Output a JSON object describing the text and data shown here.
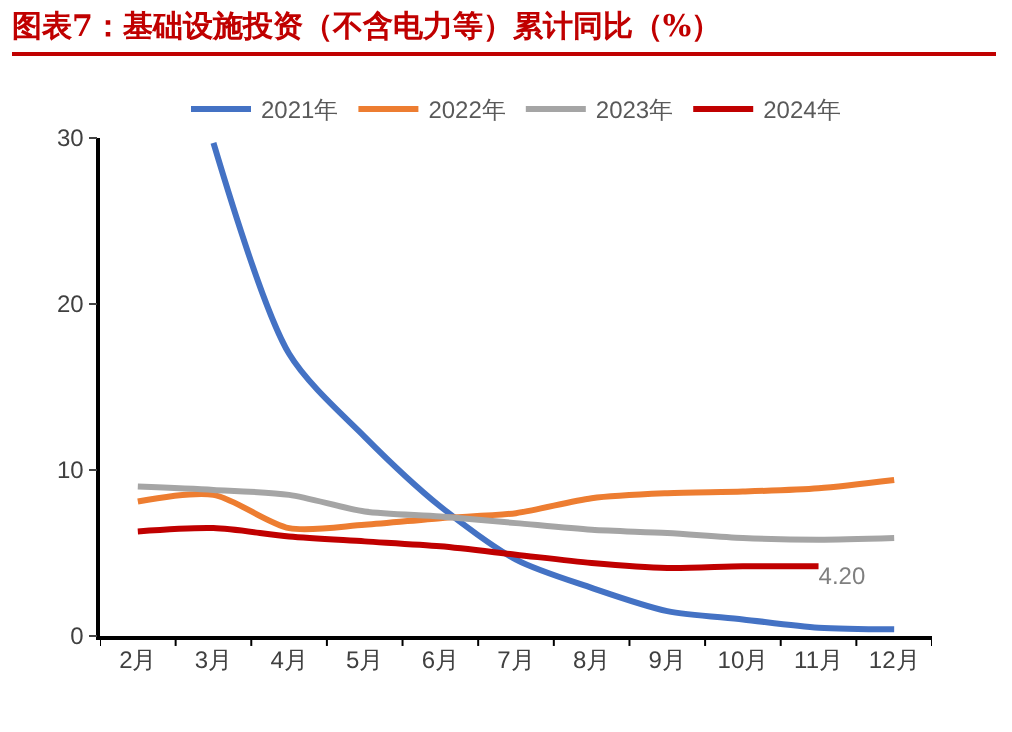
{
  "chart_data": {
    "type": "line",
    "title": "图表7：基础设施投资（不含电力等）累计同比（%）",
    "categories": [
      "2月",
      "3月",
      "4月",
      "5月",
      "6月",
      "7月",
      "8月",
      "9月",
      "10月",
      "11月",
      "12月"
    ],
    "series": [
      {
        "name": "2021年",
        "color": "#4472c4",
        "values": [
          null,
          29.7,
          17,
          12,
          7.8,
          4.6,
          2.9,
          1.5,
          1.0,
          0.5,
          0.4
        ]
      },
      {
        "name": "2022年",
        "color": "#ed7d31",
        "values": [
          8.1,
          8.5,
          6.5,
          6.7,
          7.1,
          7.4,
          8.3,
          8.6,
          8.7,
          8.9,
          9.4
        ]
      },
      {
        "name": "2023年",
        "color": "#a5a5a5",
        "values": [
          9.0,
          8.8,
          8.5,
          7.5,
          7.2,
          6.8,
          6.4,
          6.2,
          5.9,
          5.8,
          5.9
        ]
      },
      {
        "name": "2024年",
        "color": "#c00000",
        "values": [
          6.3,
          6.5,
          6.0,
          5.7,
          5.4,
          4.9,
          4.4,
          4.1,
          4.2,
          4.2,
          null
        ],
        "value_labels": [
          null,
          null,
          null,
          null,
          null,
          null,
          null,
          null,
          null,
          "4.20",
          null
        ]
      }
    ],
    "ylim": [
      0,
      30
    ],
    "yticks": [
      0,
      10,
      20,
      30
    ],
    "grid": false,
    "legend": "top",
    "marker": "none",
    "line_style": "solid"
  }
}
